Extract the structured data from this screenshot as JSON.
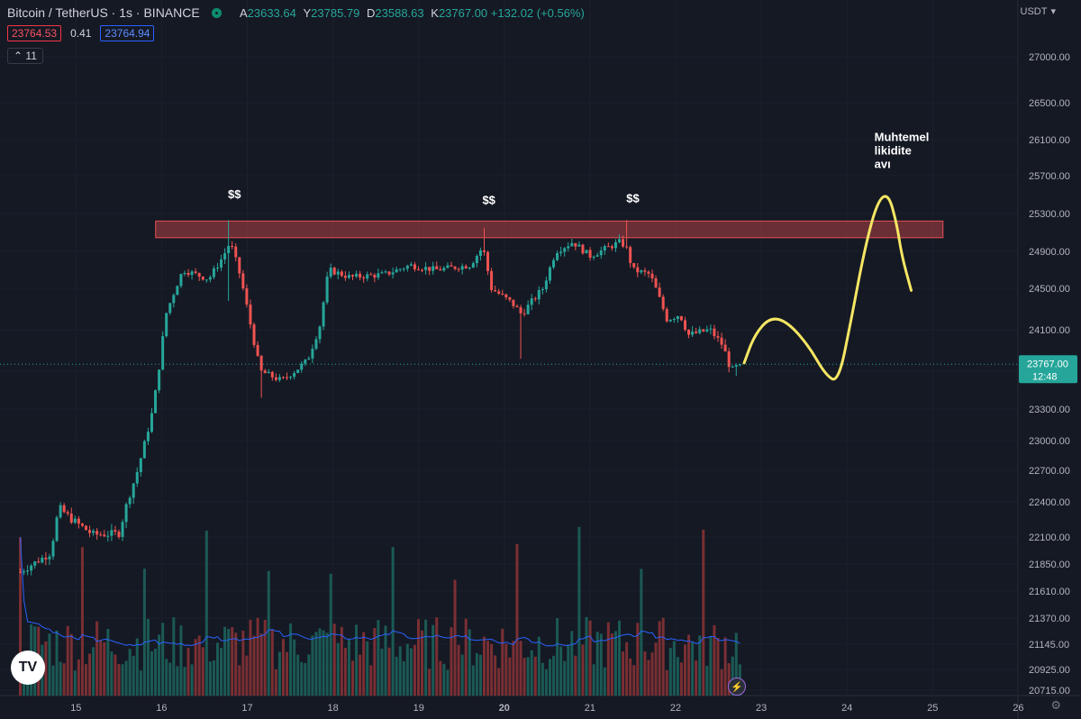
{
  "header": {
    "symbol": "Bitcoin / TetherUS · 1s · BINANCE",
    "o_label": "A",
    "o_value": "23633.64",
    "h_label": "Y",
    "h_value": "23785.79",
    "l_label": "D",
    "l_value": "23588.63",
    "c_label": "K",
    "c_value": "23767.00",
    "change": "+132.02 (+0.56%)"
  },
  "trade": {
    "sell": "23764.53",
    "spread": "0.41",
    "buy": "23764.94"
  },
  "indicator_badge": "11",
  "currency": "USDT",
  "currency_chevron": "▾",
  "logo_text": "TV",
  "bolt_icon": "⚡",
  "gear_icon": "⚙",
  "colors": {
    "up": "#26a69a",
    "down": "#ef5350",
    "sma": "#2962ff",
    "drawing": "#f5e663",
    "zone": "#d04a4e"
  },
  "chart_data": {
    "type": "candlestick",
    "x_ticks": [
      {
        "label": "15",
        "x": 15.0
      },
      {
        "label": "16",
        "x": 16.0
      },
      {
        "label": "17",
        "x": 17.0
      },
      {
        "label": "18",
        "x": 18.0
      },
      {
        "label": "19",
        "x": 19.0
      },
      {
        "label": "20",
        "x": 20.0
      },
      {
        "label": "21",
        "x": 21.0
      },
      {
        "label": "22",
        "x": 22.0
      },
      {
        "label": "23",
        "x": 23.0
      },
      {
        "label": "24",
        "x": 24.0
      },
      {
        "label": "25",
        "x": 25.0
      },
      {
        "label": "26",
        "x": 26.0
      }
    ],
    "x_range": [
      14.35,
      26.25
    ],
    "y_ticks": [
      27000,
      26500,
      26100,
      25700,
      25300,
      24900,
      24500,
      24100,
      23700,
      23300,
      23000,
      22700,
      22400,
      22100,
      21850,
      21610,
      21370,
      21145,
      20925,
      20715
    ],
    "last_price": {
      "value": 23767.0,
      "label": "23767.00",
      "countdown": "12:48"
    },
    "key_points": [
      {
        "x": 14.35,
        "y": 21780
      },
      {
        "x": 14.7,
        "y": 21950
      },
      {
        "x": 14.8,
        "y": 22350
      },
      {
        "x": 14.95,
        "y": 22250
      },
      {
        "x": 15.2,
        "y": 22120
      },
      {
        "x": 15.5,
        "y": 22130
      },
      {
        "x": 15.6,
        "y": 22400
      },
      {
        "x": 15.72,
        "y": 22700
      },
      {
        "x": 15.9,
        "y": 23300
      },
      {
        "x": 16.05,
        "y": 24250
      },
      {
        "x": 16.25,
        "y": 24700
      },
      {
        "x": 16.55,
        "y": 24600
      },
      {
        "x": 16.72,
        "y": 24850
      },
      {
        "x": 16.8,
        "y": 25000
      },
      {
        "x": 16.9,
        "y": 24700
      },
      {
        "x": 17.05,
        "y": 24100
      },
      {
        "x": 17.15,
        "y": 23700
      },
      {
        "x": 17.4,
        "y": 23600
      },
      {
        "x": 17.7,
        "y": 23800
      },
      {
        "x": 17.85,
        "y": 24150
      },
      {
        "x": 17.95,
        "y": 24700
      },
      {
        "x": 18.2,
        "y": 24620
      },
      {
        "x": 18.6,
        "y": 24650
      },
      {
        "x": 18.9,
        "y": 24750
      },
      {
        "x": 19.2,
        "y": 24700
      },
      {
        "x": 19.6,
        "y": 24750
      },
      {
        "x": 19.75,
        "y": 24950
      },
      {
        "x": 19.85,
        "y": 24500
      },
      {
        "x": 20.1,
        "y": 24350
      },
      {
        "x": 20.2,
        "y": 24250
      },
      {
        "x": 20.45,
        "y": 24500
      },
      {
        "x": 20.6,
        "y": 24900
      },
      {
        "x": 20.8,
        "y": 25000
      },
      {
        "x": 21.0,
        "y": 24850
      },
      {
        "x": 21.35,
        "y": 25000
      },
      {
        "x": 21.42,
        "y": 24950
      },
      {
        "x": 21.5,
        "y": 24700
      },
      {
        "x": 21.7,
        "y": 24650
      },
      {
        "x": 21.9,
        "y": 24200
      },
      {
        "x": 22.05,
        "y": 24250
      },
      {
        "x": 22.15,
        "y": 24050
      },
      {
        "x": 22.4,
        "y": 24100
      },
      {
        "x": 22.55,
        "y": 23950
      },
      {
        "x": 22.65,
        "y": 23700
      },
      {
        "x": 22.75,
        "y": 23767
      }
    ],
    "resistance_zone": {
      "x_start": 15.93,
      "x_end": 25.12,
      "y_low": 25045,
      "y_high": 25220
    },
    "annotations": [
      {
        "text": "$$",
        "x": 16.85,
        "y": 25460
      },
      {
        "text": "$$",
        "x": 19.82,
        "y": 25400
      },
      {
        "text": "$$",
        "x": 21.5,
        "y": 25420
      },
      {
        "text": "Muhtemel",
        "x": 24.32,
        "y": 26085
      },
      {
        "text": "likidite",
        "x": 24.32,
        "y": 25935
      },
      {
        "text": "avı",
        "x": 24.32,
        "y": 25785
      }
    ],
    "projection": [
      {
        "x": 22.8,
        "y": 23780
      },
      {
        "x": 22.92,
        "y": 24050
      },
      {
        "x": 23.1,
        "y": 24220
      },
      {
        "x": 23.3,
        "y": 24180
      },
      {
        "x": 23.55,
        "y": 23950
      },
      {
        "x": 23.75,
        "y": 23660
      },
      {
        "x": 23.9,
        "y": 23580
      },
      {
        "x": 24.05,
        "y": 24200
      },
      {
        "x": 24.2,
        "y": 24900
      },
      {
        "x": 24.35,
        "y": 25420
      },
      {
        "x": 24.48,
        "y": 25520
      },
      {
        "x": 24.58,
        "y": 25200
      },
      {
        "x": 24.64,
        "y": 24850
      },
      {
        "x": 24.75,
        "y": 24480
      }
    ]
  }
}
